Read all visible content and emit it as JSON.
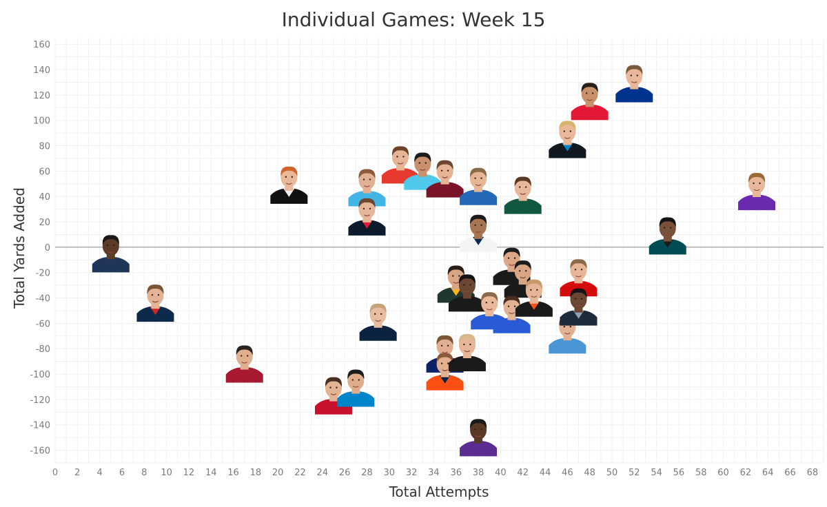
{
  "chart_data": {
    "type": "scatter",
    "title": "Individual Games: Week 15",
    "xlabel": "Total Attempts",
    "ylabel": "Total Yards Added",
    "xlim": [
      0,
      69
    ],
    "ylim": [
      -170,
      165
    ],
    "x_ticks": [
      "0",
      "2",
      "4",
      "6",
      "8",
      "10",
      "12",
      "14",
      "16",
      "18",
      "20",
      "22",
      "24",
      "26",
      "28",
      "30",
      "32",
      "34",
      "36",
      "38",
      "40",
      "42",
      "44",
      "46",
      "48",
      "50",
      "52",
      "54",
      "56",
      "58",
      "60",
      "62",
      "64",
      "66",
      "68"
    ],
    "y_ticks": [
      "160",
      "140",
      "120",
      "100",
      "80",
      "60",
      "40",
      "20",
      "0",
      "-20",
      "-40",
      "-60",
      "-80",
      "-100",
      "-120",
      "-140",
      "-160"
    ],
    "grid": true,
    "zero_line": true,
    "marker": "player-headshot",
    "points": [
      {
        "x": 5,
        "y": -10,
        "jersey": "#1f3658",
        "skin": "#5c3b28",
        "hair": "#1a1a1a"
      },
      {
        "x": 9,
        "y": -49,
        "jersey": "#0d2a4b",
        "accent": "#d2232a",
        "skin": "#e2b394",
        "hair": "#7b5433"
      },
      {
        "x": 17,
        "y": -97,
        "jersey": "#a71930",
        "skin": "#e0b08e",
        "hair": "#2a2320"
      },
      {
        "x": 21,
        "y": 44,
        "jersey": "#111111",
        "accent": "#f0f0f0",
        "skin": "#e8b898",
        "hair": "#d2612a"
      },
      {
        "x": 25,
        "y": -122,
        "jersey": "#c8102e",
        "skin": "#e3b494",
        "hair": "#4a2e22"
      },
      {
        "x": 27,
        "y": -116,
        "jersey": "#0085ca",
        "skin": "#e0ad8c",
        "hair": "#1d1d1d"
      },
      {
        "x": 28,
        "y": 42,
        "jersey": "#41b6e6",
        "skin": "#e2b092",
        "hair": "#8b5a3c"
      },
      {
        "x": 28,
        "y": 19,
        "jersey": "#0b1b2b",
        "accent": "#e31837",
        "skin": "#e5b698",
        "hair": "#6b4630"
      },
      {
        "x": 29,
        "y": -64,
        "jersey": "#0b2340",
        "skin": "#e8bca0",
        "hair": "#c8a27a"
      },
      {
        "x": 31,
        "y": 60,
        "jersey": "#e8392f",
        "skin": "#e6b595",
        "hair": "#6b4429"
      },
      {
        "x": 33,
        "y": 55,
        "jersey": "#4fc8ec",
        "skin": "#c8916b",
        "hair": "#1c1c1c"
      },
      {
        "x": 35,
        "y": 49,
        "jersey": "#7a1228",
        "skin": "#e6b395",
        "hair": "#6b4630"
      },
      {
        "x": 35,
        "y": -89,
        "jersey": "#0b2265",
        "skin": "#e1af90",
        "hair": "#7b5433"
      },
      {
        "x": 35,
        "y": -103,
        "jersey": "#fb4f14",
        "accent": "#002244",
        "skin": "#e3b090",
        "hair": "#8b5a3c"
      },
      {
        "x": 36,
        "y": -34,
        "jersey": "#203731",
        "accent": "#ffb612",
        "skin": "#d8a585",
        "hair": "#2a1f18"
      },
      {
        "x": 37,
        "y": -41,
        "jersey": "#1a1a1a",
        "skin": "#6b4632",
        "hair": "#141414"
      },
      {
        "x": 37,
        "y": -88,
        "jersey": "#1a1a1a",
        "skin": "#e6b697",
        "hair": "#d8b88a"
      },
      {
        "x": 38,
        "y": 43,
        "jersey": "#2468b8",
        "skin": "#e6b595",
        "hair": "#8b6a4a"
      },
      {
        "x": 38,
        "y": 6,
        "jersey": "#f4f4f4",
        "accent": "#0b2a55",
        "skin": "#a87653",
        "hair": "#1c1c1c"
      },
      {
        "x": 38,
        "y": -155,
        "jersey": "#5c2d91",
        "skin": "#5a3826",
        "hair": "#1a1a1a"
      },
      {
        "x": 39,
        "y": -55,
        "jersey": "#2a5bd7",
        "skin": "#e8b899",
        "hair": "#8b6a4a"
      },
      {
        "x": 41,
        "y": -20,
        "jersey": "#1a1a1a",
        "skin": "#dca888",
        "hair": "#1c1c1c"
      },
      {
        "x": 42,
        "y": -30,
        "jersey": "#1a1a1a",
        "skin": "#d8a585",
        "hair": "#1c1c1c"
      },
      {
        "x": 41,
        "y": -58,
        "jersey": "#2a5bd7",
        "skin": "#e3b294",
        "hair": "#4a2e22"
      },
      {
        "x": 42,
        "y": 36,
        "jersey": "#125740",
        "skin": "#e8b899",
        "hair": "#5a3a22"
      },
      {
        "x": 43,
        "y": -45,
        "jersey": "#1a1a1a",
        "accent": "#fb4f14",
        "skin": "#e6b595",
        "hair": "#c89a6a"
      },
      {
        "x": 46,
        "y": -74,
        "jersey": "#4a95d4",
        "skin": "#e2b092",
        "hair": "#6b4630"
      },
      {
        "x": 46,
        "y": 80,
        "jersey": "#101820",
        "accent": "#0085ca",
        "skin": "#e8b899",
        "hair": "#d8b36a"
      },
      {
        "x": 47,
        "y": -29,
        "jersey": "#d50a0a",
        "skin": "#e6b697",
        "hair": "#8b6a4a"
      },
      {
        "x": 47,
        "y": -52,
        "jersey": "#1d2a3a",
        "accent": "#8fa1b6",
        "skin": "#6b4632",
        "hair": "#141414"
      },
      {
        "x": 48,
        "y": 110,
        "jersey": "#e31837",
        "skin": "#c8916b",
        "hair": "#2a1f18"
      },
      {
        "x": 52,
        "y": 124,
        "jersey": "#00338d",
        "skin": "#e8b899",
        "hair": "#7b5a3a"
      },
      {
        "x": 55,
        "y": 4,
        "jersey": "#004c54",
        "accent": "#1a1a1a",
        "skin": "#7a5038",
        "hair": "#141414"
      },
      {
        "x": 63,
        "y": 39,
        "jersey": "#6a2ab0",
        "skin": "#e8b899",
        "hair": "#9b6a3a"
      }
    ]
  }
}
